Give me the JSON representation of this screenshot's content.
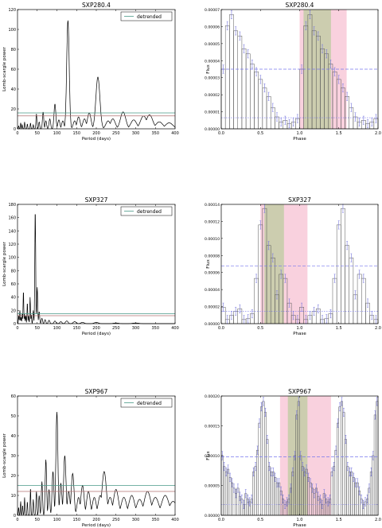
{
  "colors": {
    "periodogram": "#000000",
    "threshold_upper": "#4a9a88",
    "threshold_lower": "#b07070",
    "profile": "#555555",
    "errorbar": "#7777dd",
    "mean_line": "#7777ee",
    "band_pink": "#f7c6d6",
    "band_green": "#c6ccaa"
  },
  "chart_data": [
    {
      "type": "line",
      "title": "SXP280.4",
      "xlabel": "Period (days)",
      "ylabel": "Lomb-scargle power",
      "legend": "detrended",
      "legend_position": "top-right",
      "xlim": [
        0,
        400
      ],
      "ylim": [
        0,
        120
      ],
      "xticks": [
        "0",
        "50",
        "100",
        "150",
        "200",
        "250",
        "300",
        "350",
        "400"
      ],
      "yticks": [
        "0",
        "20",
        "40",
        "60",
        "80",
        "100",
        "120"
      ],
      "thresholds": [
        16,
        13
      ],
      "peaks": [
        [
          3,
          3
        ],
        [
          8,
          6
        ],
        [
          12,
          4
        ],
        [
          18,
          7
        ],
        [
          25,
          5
        ],
        [
          33,
          6
        ],
        [
          40,
          4
        ],
        [
          48,
          15
        ],
        [
          55,
          7
        ],
        [
          65,
          17
        ],
        [
          72,
          8
        ],
        [
          82,
          10
        ],
        [
          95,
          25
        ],
        [
          105,
          9
        ],
        [
          115,
          8
        ],
        [
          128,
          109
        ],
        [
          145,
          8
        ],
        [
          155,
          12
        ],
        [
          170,
          10
        ],
        [
          182,
          16
        ],
        [
          204,
          52
        ],
        [
          230,
          8
        ],
        [
          242,
          10
        ],
        [
          268,
          17
        ],
        [
          295,
          9
        ],
        [
          320,
          13
        ],
        [
          335,
          14
        ],
        [
          360,
          7
        ],
        [
          385,
          6
        ]
      ]
    },
    {
      "type": "bar",
      "title": "SXP280.4",
      "xlabel": "Phase",
      "ylabel": "Flux",
      "xlim": [
        0,
        2
      ],
      "ylim": [
        0,
        7e-05
      ],
      "xticks": [
        "0.0",
        "0.5",
        "1.0",
        "1.5",
        "2.0"
      ],
      "yticks": [
        "0.00000",
        "0.00001",
        "0.00002",
        "0.00003",
        "0.00004",
        "0.00005",
        "0.00006",
        "0.00007"
      ],
      "mean": 3.5e-05,
      "lower": 6.5e-06,
      "bands": [
        {
          "range": [
            1.0,
            1.6
          ],
          "kind": "pink"
        },
        {
          "range": [
            1.05,
            1.4
          ],
          "kind": "green"
        }
      ],
      "values": [
        3.5e-05,
        6.05e-05,
        6.7e-05,
        5.75e-05,
        5.45e-05,
        4.7e-05,
        4.4e-05,
        3.8e-05,
        3.35e-05,
        2.9e-05,
        2.4e-05,
        1.9e-05,
        1.25e-05,
        7e-06,
        4e-06,
        5e-06,
        3e-06,
        4e-06,
        6e-06
      ]
    },
    {
      "type": "line",
      "title": "SXP327",
      "xlabel": "Period (days)",
      "ylabel": "Lomb-scargle power",
      "legend": "detrended",
      "legend_position": "top-right",
      "xlim": [
        0,
        400
      ],
      "ylim": [
        0,
        180
      ],
      "xticks": [
        "0",
        "50",
        "100",
        "150",
        "200",
        "250",
        "300",
        "350",
        "400"
      ],
      "yticks": [
        "0",
        "20",
        "40",
        "60",
        "80",
        "100",
        "120",
        "140",
        "160",
        "180"
      ],
      "thresholds": [
        15,
        12
      ],
      "peaks": [
        [
          3,
          12
        ],
        [
          6,
          20
        ],
        [
          9,
          10
        ],
        [
          12,
          15
        ],
        [
          15,
          50
        ],
        [
          18,
          14
        ],
        [
          21,
          12
        ],
        [
          25,
          32
        ],
        [
          28,
          12
        ],
        [
          32,
          40
        ],
        [
          35,
          14
        ],
        [
          40,
          20
        ],
        [
          45,
          172
        ],
        [
          50,
          55
        ],
        [
          55,
          18
        ],
        [
          62,
          8
        ],
        [
          70,
          6
        ],
        [
          80,
          5
        ],
        [
          95,
          4
        ],
        [
          110,
          3
        ],
        [
          125,
          4
        ],
        [
          145,
          3
        ],
        [
          165,
          2
        ],
        [
          200,
          2
        ],
        [
          250,
          1
        ],
        [
          300,
          1
        ]
      ]
    },
    {
      "type": "bar",
      "title": "SXP327",
      "xlabel": "Phase",
      "ylabel": "Flux",
      "xlim": [
        0,
        2
      ],
      "ylim": [
        0,
        0.000145
      ],
      "xticks": [
        "0.0",
        "0.5",
        "1.0",
        "1.5",
        "2.0"
      ],
      "yticks": [
        "0.00000",
        "0.00002",
        "0.00004",
        "0.00006",
        "0.00008",
        "0.00010",
        "0.00012",
        "0.00014"
      ],
      "mean": 7e-05,
      "lower": 1.5e-05,
      "bands": [
        {
          "range": [
            0.5,
            1.1
          ],
          "kind": "pink"
        },
        {
          "range": [
            0.55,
            0.8
          ],
          "kind": "green"
        }
      ],
      "values": [
        2e-05,
        5e-06,
        1e-05,
        1.5e-05,
        1.8e-05,
        5e-06,
        6e-06,
        1.2e-05,
        5.5e-05,
        0.00012,
        0.00014,
        9.5e-05,
        8e-05,
        3.5e-05,
        6e-05,
        5.5e-05,
        2.5e-05,
        1e-05,
        5e-06
      ]
    },
    {
      "type": "line",
      "title": "SXP967",
      "xlabel": "Period (days)",
      "ylabel": "Lomb-scargle power",
      "legend": "detrended",
      "legend_position": "top-right",
      "xlim": [
        0,
        400
      ],
      "ylim": [
        0,
        60
      ],
      "xticks": [
        "0",
        "50",
        "100",
        "150",
        "200",
        "250",
        "300",
        "350",
        "400"
      ],
      "yticks": [
        "0",
        "10",
        "20",
        "30",
        "40",
        "50",
        "60"
      ],
      "thresholds": [
        15,
        12
      ],
      "peaks": [
        [
          3,
          4
        ],
        [
          8,
          7
        ],
        [
          13,
          5
        ],
        [
          18,
          9
        ],
        [
          25,
          7
        ],
        [
          33,
          14
        ],
        [
          40,
          8
        ],
        [
          48,
          12
        ],
        [
          55,
          10
        ],
        [
          62,
          17
        ],
        [
          72,
          28
        ],
        [
          80,
          13
        ],
        [
          90,
          22
        ],
        [
          100,
          52
        ],
        [
          110,
          16
        ],
        [
          120,
          30
        ],
        [
          130,
          12
        ],
        [
          140,
          21
        ],
        [
          155,
          9
        ],
        [
          165,
          15
        ],
        [
          180,
          12
        ],
        [
          195,
          9
        ],
        [
          210,
          10
        ],
        [
          220,
          22
        ],
        [
          235,
          9
        ],
        [
          250,
          13
        ],
        [
          270,
          9
        ],
        [
          290,
          10
        ],
        [
          310,
          8
        ],
        [
          330,
          12
        ],
        [
          350,
          9
        ],
        [
          375,
          10
        ],
        [
          395,
          7
        ]
      ]
    },
    {
      "type": "bar",
      "title": "SXP967",
      "xlabel": "Phase",
      "ylabel": "Flux",
      "xlim": [
        0,
        2
      ],
      "ylim": [
        0,
        0.00022
      ],
      "xticks": [
        "0.0",
        "0.5",
        "1.0",
        "1.5",
        "2.0"
      ],
      "yticks": [
        "0.00000",
        "0.00005",
        "0.00010",
        "0.00015",
        "0.00020"
      ],
      "mean": 0.000108,
      "lower": 2e-05,
      "bands": [
        {
          "range": [
            0.75,
            1.4
          ],
          "kind": "pink"
        },
        {
          "range": [
            0.85,
            1.1
          ],
          "kind": "green"
        }
      ],
      "values": [
        0.00011,
        9e-05,
        8e-05,
        8.5e-05,
        7e-05,
        6e-05,
        5e-05,
        4e-05,
        5e-05,
        3.5e-05,
        3e-05,
        2e-05,
        4e-05,
        3e-05,
        2.5e-05,
        3e-05,
        8e-05,
        9e-05,
        0.00012,
        0.00017,
        0.0002,
        0.00021,
        0.00019,
        0.00014,
        9e-05,
        8e-05,
        8e-05,
        7e-05,
        6e-05,
        6e-05,
        4.5e-05,
        3e-05,
        2e-05,
        2.5e-05,
        3e-05,
        5e-05,
        8e-05,
        0.00011,
        0.000185,
        0.00021
      ]
    }
  ]
}
